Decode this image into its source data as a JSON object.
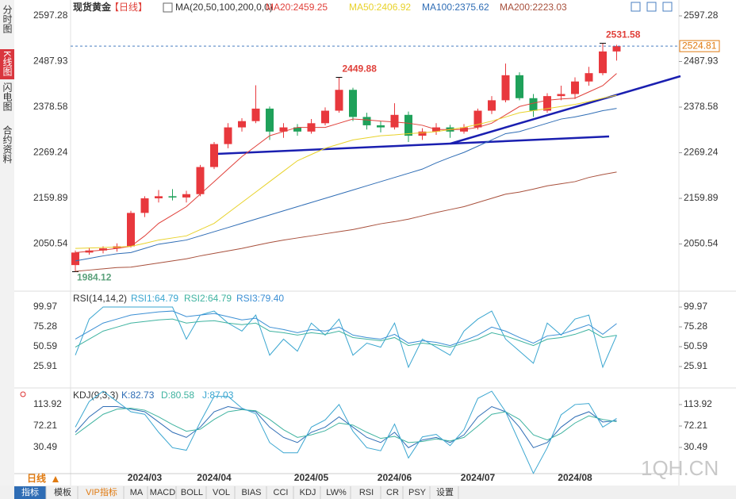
{
  "sidebar_tabs": [
    "分时图",
    "K线图",
    "闪电图",
    "合约资料"
  ],
  "period_selector": "日线",
  "toolbar_tabs": [
    "指标",
    "模板",
    "VIP指标",
    "MA",
    "MACD",
    "BOLL",
    "VOL",
    "BIAS",
    "CCI",
    "KDJ",
    "LW%",
    "RSI",
    "CR",
    "PSY",
    "设置"
  ],
  "watermark": "1QH.CN",
  "chart_data": [
    {
      "type": "candlestick",
      "title": "现货黄金",
      "period": "【日线】",
      "indicator": "MA(20,50,100,200,0,0)",
      "up_color": "#e8383d",
      "down_color": "#1fa15a",
      "ylim": [
        1941.3,
        2620.1
      ],
      "yticks": [
        2597.28,
        2487.93,
        2378.58,
        2269.24,
        2159.89,
        2050.54
      ],
      "categories": [
        null,
        null,
        null,
        null,
        null,
        "2024/03",
        null,
        null,
        null,
        null,
        "2024/04",
        null,
        null,
        null,
        null,
        null,
        null,
        "2024/05",
        null,
        null,
        null,
        null,
        null,
        "2024/06",
        null,
        null,
        null,
        null,
        null,
        "2024/07",
        null,
        null,
        null,
        null,
        null,
        null,
        "2024/08",
        null,
        null,
        null
      ],
      "candles": [
        [
          2000,
          2035,
          1984.12,
          2030
        ],
        [
          2030,
          2042,
          2025,
          2035
        ],
        [
          2035,
          2045,
          2028,
          2040
        ],
        [
          2040,
          2052,
          2032,
          2045
        ],
        [
          2045,
          2130,
          2042,
          2125
        ],
        [
          2125,
          2165,
          2115,
          2160
        ],
        [
          2160,
          2180,
          2150,
          2165
        ],
        [
          2165,
          2182,
          2155,
          2162
        ],
        [
          2162,
          2178,
          2150,
          2170
        ],
        [
          2170,
          2240,
          2165,
          2235
        ],
        [
          2235,
          2295,
          2230,
          2290
        ],
        [
          2290,
          2340,
          2280,
          2330
        ],
        [
          2330,
          2352,
          2320,
          2345
        ],
        [
          2345,
          2431,
          2340,
          2375
        ],
        [
          2375,
          2380,
          2300,
          2320
        ],
        [
          2320,
          2340,
          2305,
          2330
        ],
        [
          2330,
          2338,
          2310,
          2320
        ],
        [
          2320,
          2350,
          2315,
          2340
        ],
        [
          2340,
          2378,
          2335,
          2370
        ],
        [
          2370,
          2449.88,
          2365,
          2420
        ],
        [
          2420,
          2425,
          2345,
          2355
        ],
        [
          2355,
          2365,
          2325,
          2335
        ],
        [
          2335,
          2345,
          2318,
          2330
        ],
        [
          2330,
          2388,
          2325,
          2360
        ],
        [
          2360,
          2368,
          2295,
          2310
        ],
        [
          2310,
          2328,
          2300,
          2320
        ],
        [
          2320,
          2340,
          2312,
          2330
        ],
        [
          2330,
          2336,
          2305,
          2320
        ],
        [
          2320,
          2338,
          2315,
          2330
        ],
        [
          2330,
          2375,
          2325,
          2370
        ],
        [
          2370,
          2405,
          2362,
          2395
        ],
        [
          2395,
          2483,
          2390,
          2455
        ],
        [
          2455,
          2462,
          2395,
          2400
        ],
        [
          2400,
          2410,
          2355,
          2370
        ],
        [
          2370,
          2412,
          2365,
          2405
        ],
        [
          2405,
          2430,
          2395,
          2410
        ],
        [
          2410,
          2450,
          2398,
          2440
        ],
        [
          2440,
          2475,
          2430,
          2460
        ],
        [
          2460,
          2531.58,
          2455,
          2512
        ],
        [
          2512,
          2528,
          2490,
          2524.81
        ]
      ],
      "series": [
        {
          "name": "MA20",
          "label": "MA20:2459.25",
          "color": "#e0403a",
          "values": [
            2030,
            2033,
            2036,
            2040,
            2045,
            2070,
            2100,
            2120,
            2140,
            2170,
            2200,
            2230,
            2260,
            2285,
            2310,
            2320,
            2330,
            2330,
            2330,
            2340,
            2350,
            2348,
            2345,
            2343,
            2340,
            2335,
            2325,
            2325,
            2325,
            2330,
            2340,
            2360,
            2380,
            2388,
            2395,
            2398,
            2400,
            2415,
            2430,
            2459.25
          ]
        },
        {
          "name": "MA50",
          "label": "MA50:2406.92",
          "color": "#e8d22a",
          "values": [
            2040,
            2041,
            2042,
            2043,
            2045,
            2052,
            2060,
            2065,
            2070,
            2085,
            2100,
            2125,
            2150,
            2175,
            2200,
            2225,
            2250,
            2265,
            2280,
            2290,
            2300,
            2305,
            2310,
            2312,
            2315,
            2317,
            2320,
            2325,
            2330,
            2337,
            2345,
            2355,
            2365,
            2370,
            2375,
            2380,
            2385,
            2392,
            2400,
            2406.92
          ]
        },
        {
          "name": "MA100",
          "label": "MA100:2375.62",
          "color": "#2f6db5",
          "values": [
            2010,
            2016,
            2022,
            2027,
            2030,
            2040,
            2050,
            2055,
            2060,
            2070,
            2080,
            2090,
            2100,
            2110,
            2120,
            2130,
            2140,
            2150,
            2160,
            2170,
            2180,
            2190,
            2200,
            2210,
            2220,
            2230,
            2245,
            2258,
            2270,
            2285,
            2300,
            2315,
            2320,
            2330,
            2340,
            2350,
            2355,
            2362,
            2370,
            2375.62
          ]
        },
        {
          "name": "MA200",
          "label": "MA200:2223.03",
          "color": "#a8503c",
          "values": [
            1985,
            1988,
            1991,
            1994,
            1995,
            2000,
            2005,
            2010,
            2015,
            2022,
            2028,
            2034,
            2040,
            2047,
            2054,
            2060,
            2065,
            2070,
            2075,
            2080,
            2085,
            2092,
            2099,
            2104,
            2110,
            2118,
            2126,
            2133,
            2140,
            2150,
            2160,
            2170,
            2175,
            2182,
            2190,
            2195,
            2200,
            2210,
            2217,
            2223.03
          ]
        }
      ]
    },
    {
      "type": "line",
      "title": "RSI(14,14,2)",
      "ylim": [
        1.2,
        116.8
      ],
      "yticks": [
        99.97,
        75.28,
        50.59,
        25.91
      ],
      "series": [
        {
          "name": "RSI1",
          "label": "RSI1:64.79",
          "color": "#3aa6d0",
          "values": [
            40,
            85,
            100,
            100,
            100,
            100,
            100,
            100,
            60,
            90,
            95,
            80,
            70,
            90,
            40,
            60,
            45,
            80,
            65,
            85,
            40,
            55,
            50,
            80,
            25,
            60,
            50,
            40,
            70,
            85,
            95,
            60,
            45,
            30,
            80,
            65,
            85,
            90,
            25,
            64.79
          ]
        },
        {
          "name": "RSI2",
          "label": "RSI2:64.79",
          "color": "#3fb3a0",
          "values": [
            50,
            60,
            70,
            75,
            80,
            82,
            84,
            85,
            80,
            82,
            83,
            80,
            78,
            80,
            70,
            68,
            65,
            68,
            66,
            70,
            62,
            60,
            58,
            62,
            52,
            55,
            53,
            50,
            55,
            60,
            68,
            64,
            58,
            52,
            60,
            62,
            66,
            72,
            62,
            64.79
          ]
        },
        {
          "name": "RSI3",
          "label": "RSI3:79.40",
          "color": "#3b8fd4",
          "values": [
            60,
            70,
            80,
            85,
            90,
            92,
            94,
            95,
            88,
            90,
            92,
            88,
            84,
            86,
            75,
            72,
            68,
            72,
            70,
            75,
            65,
            62,
            60,
            66,
            55,
            58,
            56,
            52,
            58,
            65,
            75,
            70,
            62,
            55,
            64,
            66,
            72,
            78,
            66,
            79.4
          ]
        }
      ]
    },
    {
      "type": "line",
      "title": "KDJ(9,3,3)",
      "ylim": [
        -17.4,
        141.7
      ],
      "yticks": [
        113.92,
        72.21,
        30.49
      ],
      "series": [
        {
          "name": "K",
          "label": "K:82.73",
          "color": "#2f6db5",
          "values": [
            60,
            90,
            110,
            110,
            105,
            100,
            80,
            60,
            50,
            70,
            100,
            110,
            105,
            100,
            70,
            50,
            40,
            60,
            70,
            90,
            70,
            50,
            40,
            60,
            30,
            45,
            50,
            40,
            55,
            90,
            110,
            100,
            70,
            30,
            40,
            70,
            90,
            100,
            80,
            82.73
          ]
        },
        {
          "name": "D",
          "label": "D:80.58",
          "color": "#3fb3a0",
          "values": [
            55,
            75,
            95,
            105,
            107,
            103,
            90,
            75,
            62,
            66,
            85,
            100,
            104,
            102,
            85,
            65,
            50,
            55,
            63,
            78,
            74,
            60,
            48,
            52,
            40,
            42,
            47,
            43,
            50,
            72,
            95,
            100,
            85,
            55,
            45,
            58,
            78,
            92,
            85,
            80.58
          ]
        },
        {
          "name": "J",
          "label": "J:87.03",
          "color": "#3aa6d0",
          "values": [
            70,
            120,
            140,
            120,
            100,
            95,
            60,
            30,
            25,
            80,
            130,
            130,
            107,
            96,
            40,
            20,
            20,
            70,
            84,
            114,
            62,
            30,
            24,
            76,
            10,
            51,
            56,
            34,
            65,
            126,
            140,
            100,
            40,
            -20,
            30,
            94,
            114,
            116,
            70,
            87.03
          ]
        }
      ]
    }
  ]
}
